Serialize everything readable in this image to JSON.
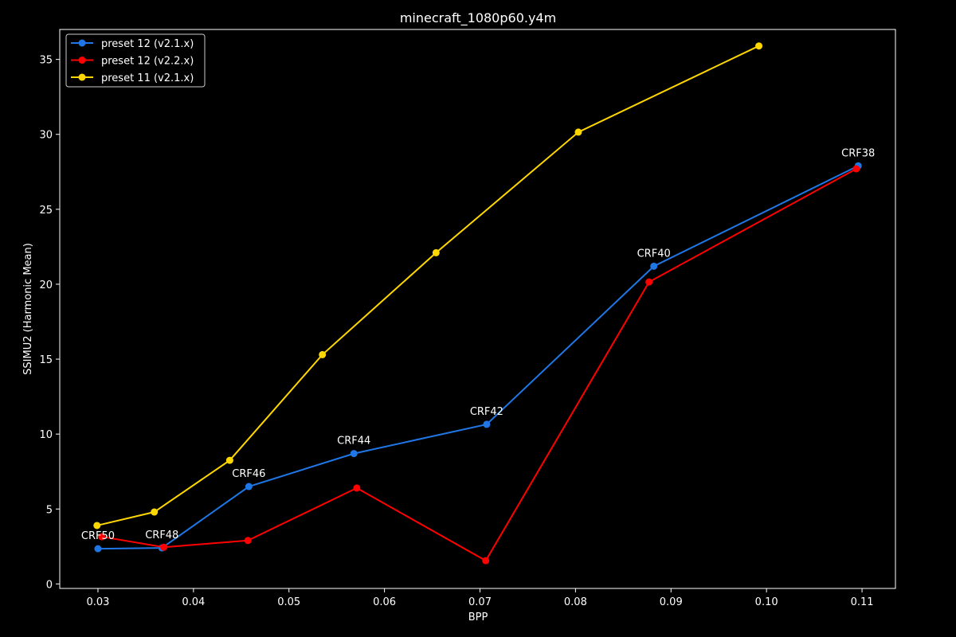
{
  "chart_data": {
    "type": "line",
    "title": "minecraft_1080p60.y4m",
    "xlabel": "BPP",
    "ylabel": "SSIMU2 (Harmonic Mean)",
    "xlim": [
      0.026,
      0.1135
    ],
    "ylim": [
      -0.3,
      37.0
    ],
    "xticks": [
      0.03,
      0.04,
      0.05,
      0.06,
      0.07,
      0.08,
      0.09,
      0.1,
      0.11
    ],
    "xtick_labels": [
      "0.03",
      "0.04",
      "0.05",
      "0.06",
      "0.07",
      "0.08",
      "0.09",
      "0.10",
      "0.11"
    ],
    "yticks": [
      0,
      5,
      10,
      15,
      20,
      25,
      30,
      35
    ],
    "ytick_labels": [
      "0",
      "5",
      "10",
      "15",
      "20",
      "25",
      "30",
      "35"
    ],
    "grid": false,
    "legend_position": "top-left",
    "series": [
      {
        "name": "preset 12 (v2.1.x)",
        "color": "#1f77e6",
        "x": [
          0.03,
          0.0367,
          0.0458,
          0.0568,
          0.0707,
          0.0882,
          0.1096
        ],
        "y": [
          2.35,
          2.4,
          6.5,
          8.7,
          10.65,
          21.2,
          27.9
        ]
      },
      {
        "name": "preset 12 (v2.2.x)",
        "color": "#ff0000",
        "x": [
          0.0304,
          0.0369,
          0.0457,
          0.0571,
          0.0706,
          0.0877,
          0.1094
        ],
        "y": [
          3.15,
          2.45,
          2.9,
          6.4,
          1.55,
          20.15,
          27.7
        ]
      },
      {
        "name": "preset 11 (v2.1.x)",
        "color": "#ffd700",
        "x": [
          0.0299,
          0.0359,
          0.0438,
          0.0535,
          0.0654,
          0.0803,
          0.0992
        ],
        "y": [
          3.9,
          4.8,
          8.25,
          15.3,
          22.1,
          30.15,
          35.9
        ]
      }
    ],
    "annotations": [
      {
        "text": "CRF50",
        "x": 0.03,
        "y": 2.35
      },
      {
        "text": "CRF48",
        "x": 0.0367,
        "y": 2.4
      },
      {
        "text": "CRF46",
        "x": 0.0458,
        "y": 6.5
      },
      {
        "text": "CRF44",
        "x": 0.0568,
        "y": 8.7
      },
      {
        "text": "CRF42",
        "x": 0.0707,
        "y": 10.65
      },
      {
        "text": "CRF40",
        "x": 0.0882,
        "y": 21.2
      },
      {
        "text": "CRF38",
        "x": 0.1096,
        "y": 27.9
      }
    ]
  }
}
